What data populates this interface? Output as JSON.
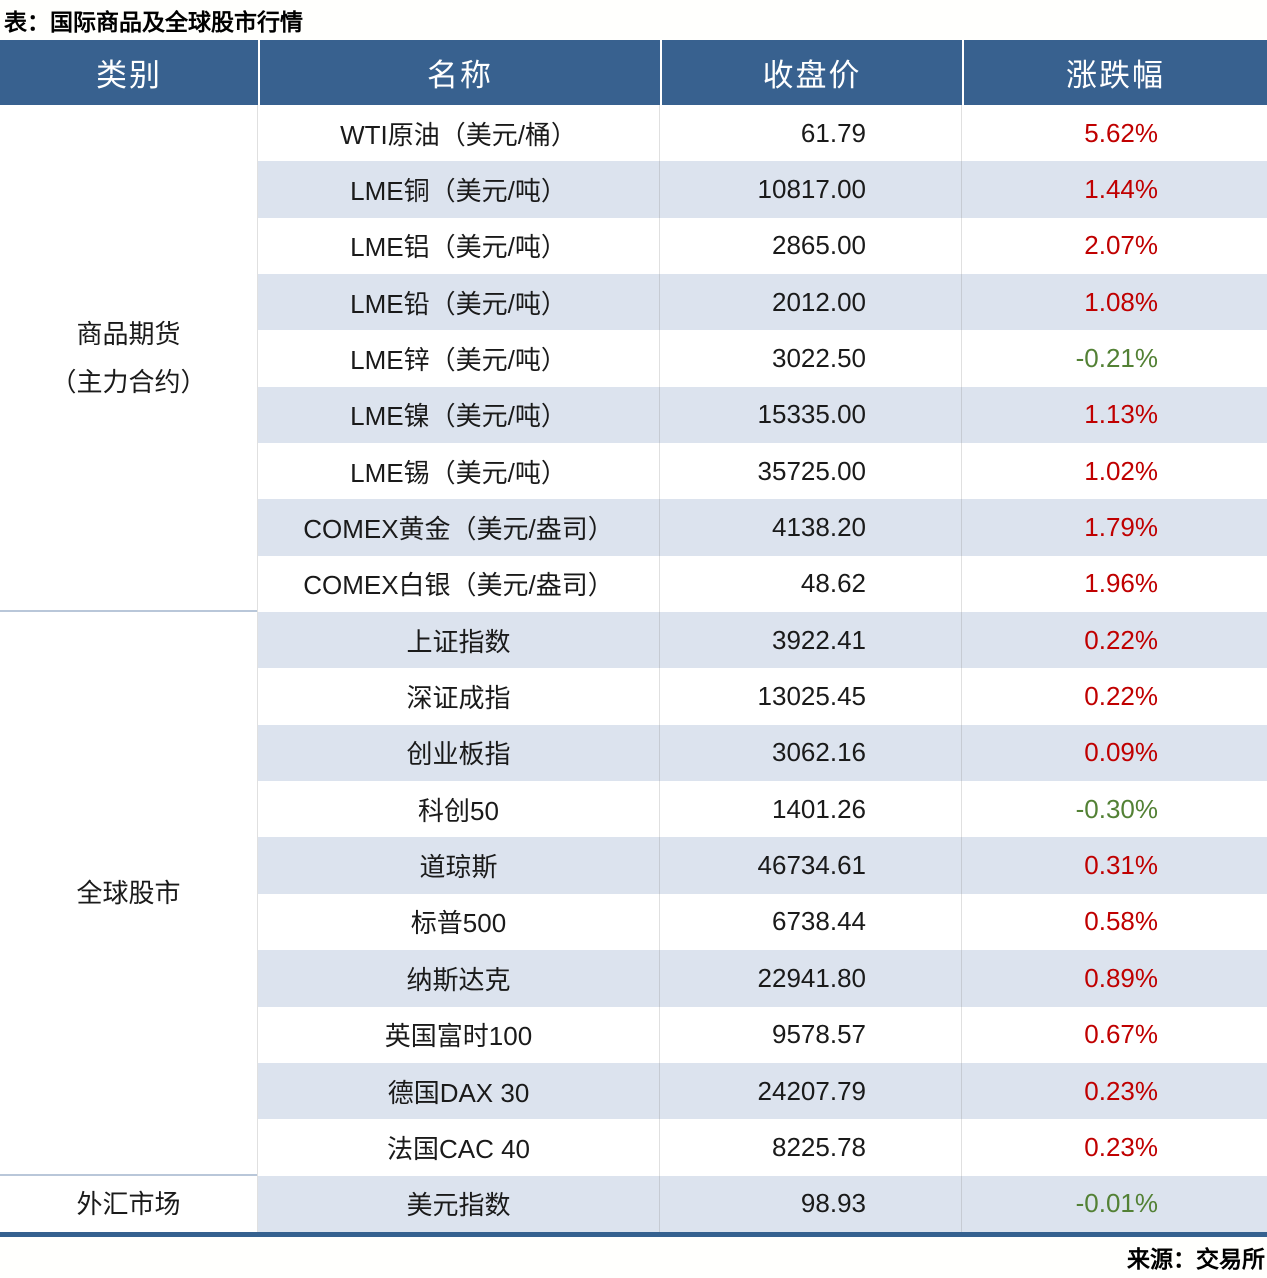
{
  "title": "表：国际商品及全球股市行情",
  "source": "来源：交易所",
  "header": {
    "category": "类别",
    "name": "名称",
    "close": "收盘价",
    "change": "涨跌幅"
  },
  "colors": {
    "header_bg": "#38618f",
    "header_text": "#ffffff",
    "row_alt_bg": "#dce3ee",
    "up_red": "#c00000",
    "down_green": "#538135",
    "bottom_rule_blue": "#35618f",
    "group_divider": "#b9c7d9"
  },
  "groups": [
    {
      "category": "商品期货（主力合约）",
      "category_lines": [
        "商品期货",
        "（主力合约）"
      ],
      "rows": [
        {
          "name": "WTI原油（美元/桶）",
          "close": "61.79",
          "change": "5.62%"
        },
        {
          "name": "LME铜（美元/吨）",
          "close": "10817.00",
          "change": "1.44%"
        },
        {
          "name": "LME铝（美元/吨）",
          "close": "2865.00",
          "change": "2.07%"
        },
        {
          "name": "LME铅（美元/吨）",
          "close": "2012.00",
          "change": "1.08%"
        },
        {
          "name": "LME锌（美元/吨）",
          "close": "3022.50",
          "change": "-0.21%"
        },
        {
          "name": "LME镍（美元/吨）",
          "close": "15335.00",
          "change": "1.13%"
        },
        {
          "name": "LME锡（美元/吨）",
          "close": "35725.00",
          "change": "1.02%"
        },
        {
          "name": "COMEX黄金（美元/盎司）",
          "close": "4138.20",
          "change": "1.79%"
        },
        {
          "name": "COMEX白银（美元/盎司）",
          "close": "48.62",
          "change": "1.96%"
        }
      ]
    },
    {
      "category": "全球股市",
      "category_lines": [
        "全球股市"
      ],
      "rows": [
        {
          "name": "上证指数",
          "close": "3922.41",
          "change": "0.22%"
        },
        {
          "name": "深证成指",
          "close": "13025.45",
          "change": "0.22%"
        },
        {
          "name": "创业板指",
          "close": "3062.16",
          "change": "0.09%"
        },
        {
          "name": "科创50",
          "close": "1401.26",
          "change": "-0.30%"
        },
        {
          "name": "道琼斯",
          "close": "46734.61",
          "change": "0.31%"
        },
        {
          "name": "标普500",
          "close": "6738.44",
          "change": "0.58%"
        },
        {
          "name": "纳斯达克",
          "close": "22941.80",
          "change": "0.89%"
        },
        {
          "name": "英国富时100",
          "close": "9578.57",
          "change": "0.67%"
        },
        {
          "name": "德国DAX 30",
          "close": "24207.79",
          "change": "0.23%"
        },
        {
          "name": "法国CAC 40",
          "close": "8225.78",
          "change": "0.23%"
        }
      ]
    },
    {
      "category": "外汇市场",
      "category_lines": [
        "外汇市场"
      ],
      "rows": [
        {
          "name": "美元指数",
          "close": "98.93",
          "change": "-0.01%"
        }
      ]
    }
  ],
  "chart_data": {
    "type": "table",
    "title": "表：国际商品及全球股市行情",
    "columns": [
      "类别",
      "名称",
      "收盘价",
      "涨跌幅"
    ],
    "rows": [
      [
        "商品期货（主力合约）",
        "WTI原油（美元/桶）",
        61.79,
        "5.62%"
      ],
      [
        "商品期货（主力合约）",
        "LME铜（美元/吨）",
        10817.0,
        "1.44%"
      ],
      [
        "商品期货（主力合约）",
        "LME铝（美元/吨）",
        2865.0,
        "2.07%"
      ],
      [
        "商品期货（主力合约）",
        "LME铅（美元/吨）",
        2012.0,
        "1.08%"
      ],
      [
        "商品期货（主力合约）",
        "LME锌（美元/吨）",
        3022.5,
        "-0.21%"
      ],
      [
        "商品期货（主力合约）",
        "LME镍（美元/吨）",
        15335.0,
        "1.13%"
      ],
      [
        "商品期货（主力合约）",
        "LME锡（美元/吨）",
        35725.0,
        "1.02%"
      ],
      [
        "商品期货（主力合约）",
        "COMEX黄金（美元/盎司）",
        4138.2,
        "1.79%"
      ],
      [
        "商品期货（主力合约）",
        "COMEX白银（美元/盎司）",
        48.62,
        "1.96%"
      ],
      [
        "全球股市",
        "上证指数",
        3922.41,
        "0.22%"
      ],
      [
        "全球股市",
        "深证成指",
        13025.45,
        "0.22%"
      ],
      [
        "全球股市",
        "创业板指",
        3062.16,
        "0.09%"
      ],
      [
        "全球股市",
        "科创50",
        1401.26,
        "-0.30%"
      ],
      [
        "全球股市",
        "道琼斯",
        46734.61,
        "0.31%"
      ],
      [
        "全球股市",
        "标普500",
        6738.44,
        "0.58%"
      ],
      [
        "全球股市",
        "纳斯达克",
        22941.8,
        "0.89%"
      ],
      [
        "全球股市",
        "英国富时100",
        9578.57,
        "0.67%"
      ],
      [
        "全球股市",
        "德国DAX 30",
        24207.79,
        "0.23%"
      ],
      [
        "全球股市",
        "法国CAC 40",
        8225.78,
        "0.23%"
      ],
      [
        "外汇市场",
        "美元指数",
        98.93,
        "-0.01%"
      ]
    ]
  }
}
